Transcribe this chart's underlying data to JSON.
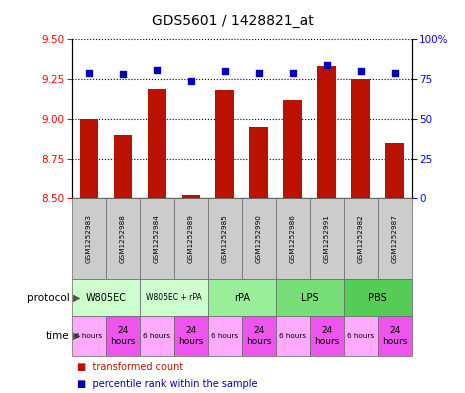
{
  "title": "GDS5601 / 1428821_at",
  "samples": [
    "GSM1252983",
    "GSM1252988",
    "GSM1252984",
    "GSM1252989",
    "GSM1252985",
    "GSM1252990",
    "GSM1252986",
    "GSM1252991",
    "GSM1252982",
    "GSM1252987"
  ],
  "transformed_counts": [
    9.0,
    8.9,
    9.19,
    8.52,
    9.18,
    8.95,
    9.12,
    9.33,
    9.25,
    8.85
  ],
  "percentile_ranks": [
    79,
    78,
    81,
    74,
    80,
    79,
    79,
    84,
    80,
    79
  ],
  "ylim_left": [
    8.5,
    9.5
  ],
  "ylim_right": [
    0,
    100
  ],
  "yticks_left": [
    8.5,
    8.75,
    9.0,
    9.25,
    9.5
  ],
  "yticks_right": [
    0,
    25,
    50,
    75,
    100
  ],
  "protocols": [
    {
      "label": "W805EC",
      "start": 0,
      "end": 2,
      "color": "#ccffcc"
    },
    {
      "label": "W805EC + rPA",
      "start": 2,
      "end": 4,
      "color": "#ccffcc"
    },
    {
      "label": "rPA",
      "start": 4,
      "end": 6,
      "color": "#99ee99"
    },
    {
      "label": "LPS",
      "start": 6,
      "end": 8,
      "color": "#77dd77"
    },
    {
      "label": "PBS",
      "start": 8,
      "end": 10,
      "color": "#55cc55"
    }
  ],
  "time_labels": [
    "6 hours",
    "24\nhours",
    "6 hours",
    "24\nhours",
    "6 hours",
    "24\nhours",
    "6 hours",
    "24\nhours",
    "6 hours",
    "24\nhours"
  ],
  "time_colors": [
    "#ffaaff",
    "#ee55ee",
    "#ffaaff",
    "#ee55ee",
    "#ffaaff",
    "#ee55ee",
    "#ffaaff",
    "#ee55ee",
    "#ffaaff",
    "#ee55ee"
  ],
  "bar_color": "#bb1100",
  "dot_color": "#0000bb",
  "background_color": "#ffffff"
}
